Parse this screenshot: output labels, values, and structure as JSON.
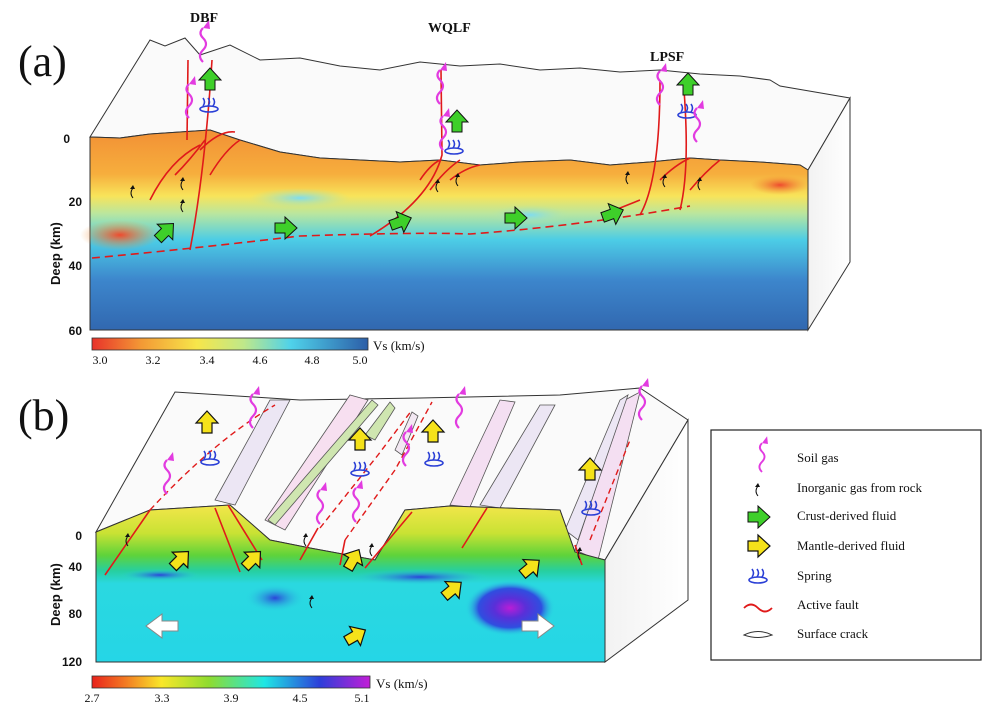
{
  "panel_a": {
    "label": "(a)",
    "faults": [
      "DBF",
      "WQLF",
      "LPSF"
    ],
    "axis_title": "Deep (km)",
    "depth_ticks": [
      "0",
      "20",
      "40",
      "60"
    ],
    "colorbar_ticks": [
      "3.0",
      "3.2",
      "3.4",
      "4.6",
      "4.8",
      "5.0"
    ],
    "colorbar_unit": "Vs (km/s)"
  },
  "panel_b": {
    "label": "(b)",
    "axis_title": "Deep (km)",
    "depth_ticks": [
      "0",
      "40",
      "80",
      "120"
    ],
    "colorbar_ticks": [
      "2.7",
      "3.3",
      "3.9",
      "4.5",
      "5.1"
    ],
    "colorbar_unit": "Vs (km/s)"
  },
  "legend": {
    "items": [
      {
        "label": "Soil gas",
        "icon": "soil-gas-icon"
      },
      {
        "label": "Inorganic gas from rock",
        "icon": "inorganic-gas-icon"
      },
      {
        "label": "Crust-derived fluid",
        "icon": "green-arrow-icon"
      },
      {
        "label": "Mantle-derived fluid",
        "icon": "yellow-arrow-icon"
      },
      {
        "label": "Spring",
        "icon": "spring-icon"
      },
      {
        "label": "Active fault",
        "icon": "red-fault-icon"
      },
      {
        "label": "Surface crack",
        "icon": "crack-icon"
      }
    ]
  },
  "colors": {
    "soil_gas": "#e23be0",
    "crust_fluid": "#3ecf2a",
    "mantle_fluid": "#f5e21a",
    "spring": "#2a3fd6",
    "fault": "#e01a1a"
  }
}
